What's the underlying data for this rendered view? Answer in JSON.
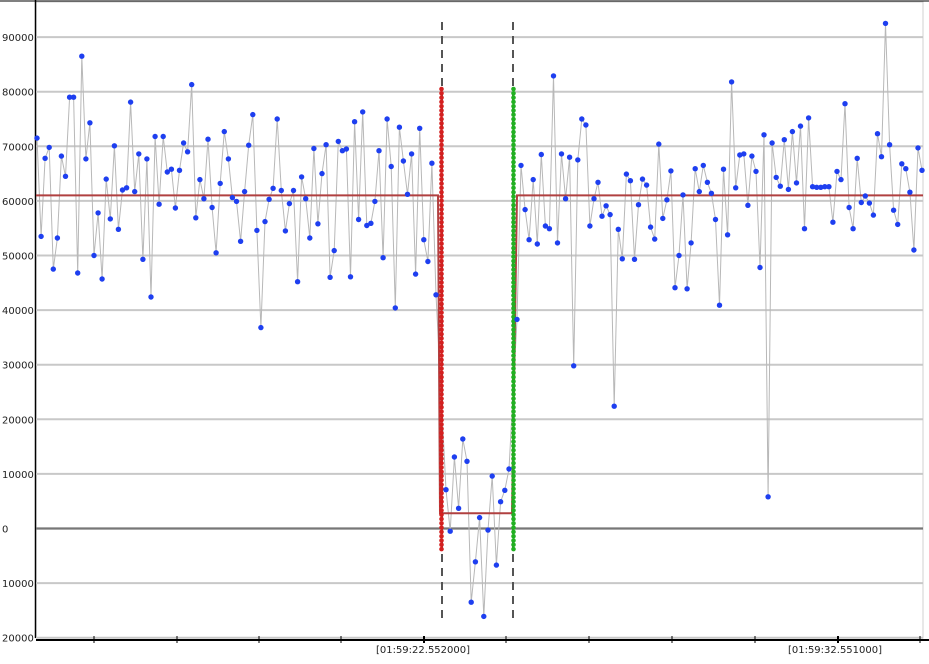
{
  "chart_data": {
    "type": "scatter",
    "title": "",
    "xlabel": "",
    "ylabel": "",
    "ylim": [
      -20000,
      92000
    ],
    "y_ticks": [
      90000,
      80000,
      70000,
      60000,
      50000,
      40000,
      30000,
      20000,
      10000,
      0,
      -10000,
      -20000
    ],
    "y_tick_labels": [
      "90000",
      "80000",
      "70000",
      "60000",
      "50000",
      "40000",
      "30000",
      "20000",
      "10000",
      "0",
      "10000",
      "20000"
    ],
    "x_tick_labels": [
      "[01:59:22.552000]",
      "[01:59:32.551000]"
    ],
    "grid": true,
    "series": [
      {
        "color": "#1e3ff0",
        "values": [
          71500,
          53500,
          67800,
          69800,
          47500,
          53200,
          68200,
          64500,
          79000,
          79000,
          46800,
          86500,
          67700,
          74300,
          50000,
          57800,
          45700,
          64000,
          56700,
          70100,
          54800,
          62000,
          62400,
          78100,
          61700,
          68600,
          49300,
          67700,
          42400,
          71800,
          59400,
          71800,
          65300,
          65800,
          58700,
          65600,
          70600,
          69000,
          81300,
          56900,
          63900,
          60400,
          71300,
          58800,
          50500,
          63200,
          72700,
          67700,
          60600,
          59900,
          52600,
          61700,
          70200,
          75800,
          54600,
          36800,
          56200,
          60300,
          62300,
          75000,
          61900,
          54500,
          59500,
          61900,
          45200,
          64400,
          60400,
          53200,
          69600,
          55800,
          65000,
          70300,
          46000,
          50900,
          70900,
          69200,
          69500,
          46100,
          74500,
          56600,
          76300,
          55500,
          55900,
          59900,
          69200,
          49600,
          75000,
          66300,
          40400,
          73500,
          67300,
          61200,
          68600,
          46600,
          73300,
          52900,
          48900,
          66900,
          42800,
          7100,
          -500,
          13100,
          3700,
          16400,
          12300,
          -13500,
          -6100,
          2000,
          -16100,
          -300,
          9600,
          -6700,
          4900,
          7000,
          10900,
          38300,
          66500,
          58400,
          52900,
          63900,
          52100,
          68500,
          55400,
          54900,
          82900,
          52300,
          68600,
          60400,
          68000,
          29800,
          67500,
          75000,
          73900,
          55400,
          60400,
          63400,
          57200,
          59100,
          57500,
          22400,
          54800,
          49400,
          64900,
          63700,
          49300,
          59300,
          64000,
          62900,
          55200,
          53000,
          70400,
          56800,
          60200,
          65500,
          44100,
          50000,
          61100,
          43900,
          52300,
          65900,
          61700,
          66500,
          63400,
          61400,
          56600,
          40900,
          65800,
          53800,
          81800,
          62400,
          68400,
          68600,
          59200,
          68200,
          65400,
          47800,
          72100,
          5800,
          70600,
          64300,
          62700,
          71200,
          62100,
          72700,
          63300,
          73700,
          54900,
          75200,
          62600,
          62500,
          62500,
          62600,
          62600,
          56100,
          65400,
          63900,
          77800,
          58800,
          54900,
          67800,
          59700,
          60900,
          59600,
          57400,
          72300,
          68100,
          92500,
          70300,
          58300,
          55700,
          66800,
          65900,
          61600,
          51000,
          69700,
          65600
        ]
      }
    ],
    "mean_line": {
      "color": "#b04040",
      "values": [
        61000,
        2800,
        61000
      ]
    },
    "markers": [
      {
        "color": "#d42020"
      },
      {
        "color": "#22b022"
      }
    ]
  }
}
